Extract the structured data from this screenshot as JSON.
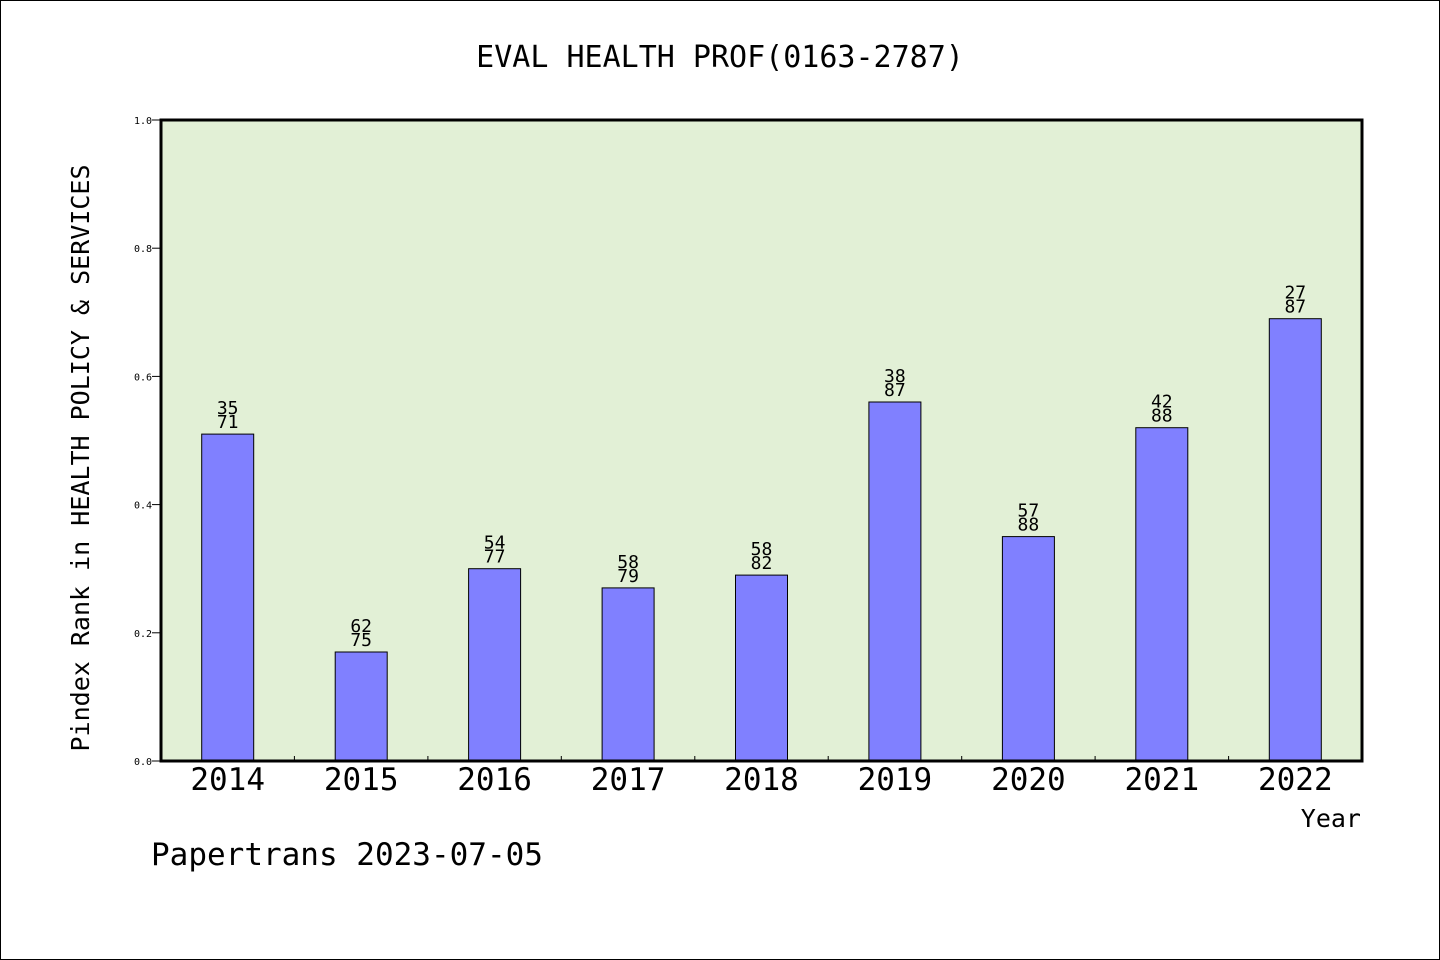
{
  "chart_data": {
    "type": "bar",
    "title": "EVAL HEALTH PROF(0163-2787)",
    "xlabel": "Year",
    "ylabel": "Pindex Rank in HEALTH POLICY & SERVICES",
    "ylim": [
      0,
      1
    ],
    "yticks": [
      "0.0",
      "0.2",
      "0.4",
      "0.6",
      "0.8",
      "1.0"
    ],
    "categories": [
      "2014",
      "2015",
      "2016",
      "2017",
      "2018",
      "2019",
      "2020",
      "2021",
      "2022"
    ],
    "values": [
      0.51,
      0.17,
      0.3,
      0.27,
      0.29,
      0.56,
      0.35,
      0.52,
      0.69
    ],
    "label_top": [
      "35",
      "62",
      "54",
      "58",
      "58",
      "38",
      "57",
      "42",
      "27"
    ],
    "label_bottom": [
      "71",
      "75",
      "77",
      "79",
      "82",
      "87",
      "88",
      "88",
      "87"
    ],
    "grid": false,
    "colors": {
      "plot_background": "#e2f0d6",
      "bar_fill": "#8080ff",
      "bar_stroke": "#000000"
    }
  },
  "footer": "Papertrans 2023-07-05"
}
